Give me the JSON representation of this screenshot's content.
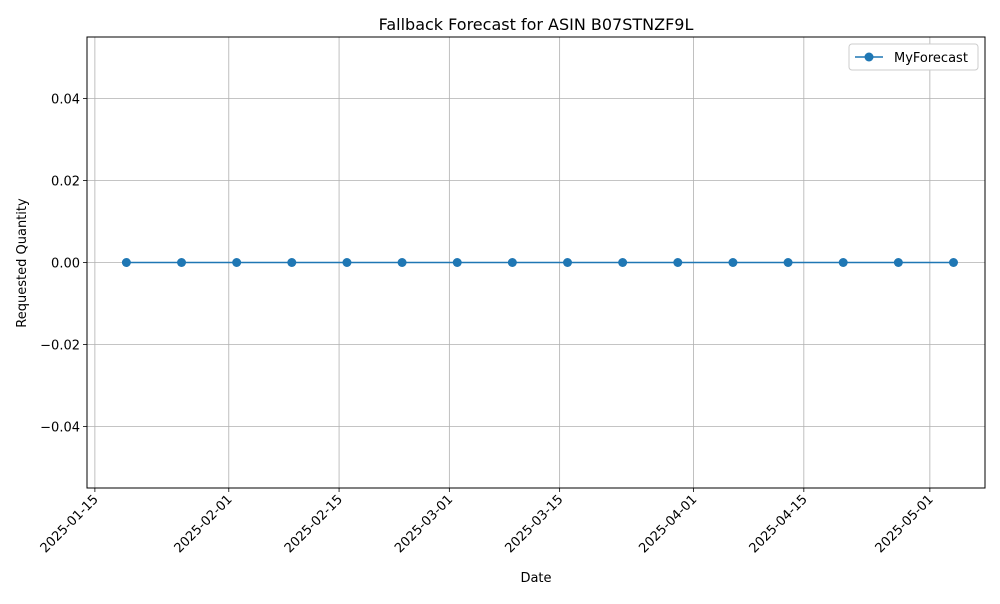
{
  "chart_data": {
    "type": "line",
    "title": "Fallback Forecast for ASIN B07STNZF9L",
    "xlabel": "Date",
    "ylabel": "Requested Quantity",
    "x": [
      "2025-01-19",
      "2025-01-26",
      "2025-02-02",
      "2025-02-09",
      "2025-02-16",
      "2025-02-23",
      "2025-03-02",
      "2025-03-09",
      "2025-03-16",
      "2025-03-23",
      "2025-03-30",
      "2025-04-06",
      "2025-04-13",
      "2025-04-20",
      "2025-04-27",
      "2025-05-04"
    ],
    "series": [
      {
        "name": "MyForecast",
        "values": [
          0,
          0,
          0,
          0,
          0,
          0,
          0,
          0,
          0,
          0,
          0,
          0,
          0,
          0,
          0,
          0
        ]
      }
    ],
    "xlim": [
      "2025-01-14",
      "2025-05-08"
    ],
    "ylim": [
      -0.055,
      0.055
    ],
    "xticks": [
      "2025-01-15",
      "2025-02-01",
      "2025-02-15",
      "2025-03-01",
      "2025-03-15",
      "2025-04-01",
      "2025-04-15",
      "2025-05-01"
    ],
    "yticks": [
      -0.04,
      -0.02,
      0.0,
      0.02,
      0.04
    ],
    "ytick_labels": [
      "−0.04",
      "−0.02",
      "0.00",
      "0.02",
      "0.04"
    ],
    "grid": true,
    "legend": "top-right",
    "series_color": "#1f77b4"
  }
}
